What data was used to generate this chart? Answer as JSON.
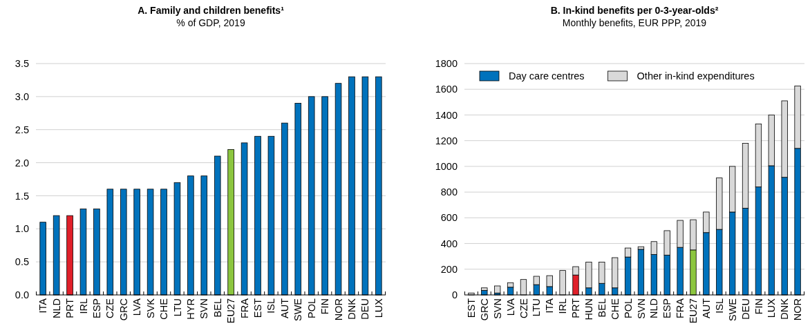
{
  "chart_data": [
    {
      "type": "bar",
      "title": "A. Family and children benefits¹",
      "subtitle": "% of GDP, 2019",
      "categories": [
        "ITA",
        "NLD",
        "PRT",
        "IRL",
        "ESP",
        "CZE",
        "GRC",
        "LVA",
        "SVK",
        "CHE",
        "LTU",
        "HYR",
        "SVN",
        "BEL",
        "EU27",
        "FRA",
        "EST",
        "ISL",
        "AUT",
        "SWE",
        "POL",
        "FIN",
        "NOR",
        "DNK",
        "DEU",
        "LUX"
      ],
      "values": [
        1.1,
        1.2,
        1.2,
        1.3,
        1.3,
        1.6,
        1.6,
        1.6,
        1.6,
        1.6,
        1.7,
        1.8,
        1.8,
        2.1,
        2.2,
        2.3,
        2.4,
        2.4,
        2.6,
        2.9,
        3.0,
        3.0,
        3.2,
        3.3,
        3.3,
        3.3
      ],
      "colors": [
        "#0072bc",
        "#0072bc",
        "#e0202a",
        "#0072bc",
        "#0072bc",
        "#0072bc",
        "#0072bc",
        "#0072bc",
        "#0072bc",
        "#0072bc",
        "#0072bc",
        "#0072bc",
        "#0072bc",
        "#0072bc",
        "#8cc63f",
        "#0072bc",
        "#0072bc",
        "#0072bc",
        "#0072bc",
        "#0072bc",
        "#0072bc",
        "#0072bc",
        "#0072bc",
        "#0072bc",
        "#0072bc",
        "#0072bc"
      ],
      "ylim": [
        0,
        3.5
      ],
      "yticks": [
        {
          "value": 0,
          "label": "0.0"
        },
        0.5,
        {
          "value": 1,
          "label": "1.0"
        },
        1.5,
        {
          "value": 2,
          "label": "2.0"
        },
        2.5,
        {
          "value": 3,
          "label": "3.0"
        },
        3.5
      ],
      "grid": "y"
    },
    {
      "type": "bar",
      "title": "B. In-kind benefits per 0-3-year-olds²",
      "subtitle": "Monthly benefits, EUR PPP, 2019",
      "stacked": true,
      "legend": "top left",
      "categories": [
        "EST",
        "GRC",
        "SVN",
        "LVA",
        "CZE",
        "LTU",
        "ITA",
        "IRL",
        "PRT",
        "HUN",
        "BEL",
        "CHE",
        "POL",
        "SVN",
        "NLD",
        "ESP",
        "FRA",
        "EU27",
        "AUT",
        "ISL",
        "SWE",
        "DEU",
        "FIN",
        "LUX",
        "DNK",
        "NOR"
      ],
      "series": [
        {
          "name": "Day care centres",
          "color": "#0072bc",
          "colors": [
            "#0072bc",
            "#0072bc",
            "#0072bc",
            "#0072bc",
            "#0072bc",
            "#0072bc",
            "#0072bc",
            "#0072bc",
            "#e0202a",
            "#0072bc",
            "#0072bc",
            "#0072bc",
            "#0072bc",
            "#0072bc",
            "#0072bc",
            "#0072bc",
            "#0072bc",
            "#8cc63f",
            "#0072bc",
            "#0072bc",
            "#0072bc",
            "#0072bc",
            "#0072bc",
            "#0072bc",
            "#0072bc",
            "#0072bc"
          ],
          "values": [
            0,
            35,
            15,
            60,
            0,
            80,
            65,
            0,
            155,
            55,
            90,
            55,
            295,
            355,
            315,
            310,
            370,
            350,
            485,
            510,
            645,
            675,
            840,
            1005,
            915,
            1140
          ]
        },
        {
          "name": "Other in-kind expenditures",
          "color": "#d9d9d9",
          "values": [
            15,
            20,
            55,
            35,
            120,
            65,
            85,
            190,
            65,
            200,
            165,
            235,
            70,
            20,
            100,
            190,
            210,
            235,
            160,
            400,
            355,
            505,
            490,
            395,
            595,
            485
          ]
        }
      ],
      "ylim": [
        0,
        1800
      ],
      "yticks": [
        0,
        200,
        400,
        600,
        800,
        1000,
        1200,
        1400,
        1600,
        1800
      ],
      "grid": "y"
    }
  ]
}
